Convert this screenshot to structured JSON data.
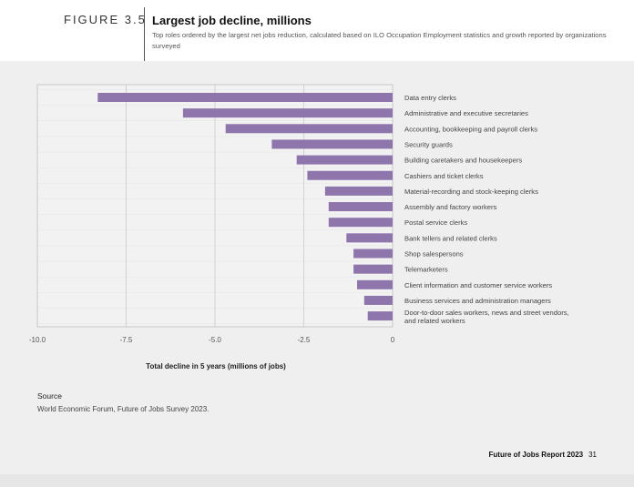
{
  "header": {
    "figure_label": "FIGURE 3.5",
    "title": "Largest job decline, millions",
    "subtitle": "Top roles ordered by the largest net jobs reduction, calculated based on ILO Occupation Employment statistics and growth reported by organizations surveyed"
  },
  "chart_data": {
    "type": "bar",
    "orientation": "horizontal",
    "categories": [
      "Data entry clerks",
      "Administrative and executive secretaries",
      "Accounting, bookkeeping and payroll clerks",
      "Security guards",
      "Building caretakers and housekeepers",
      "Cashiers and ticket clerks",
      "Material-recording and stock-keeping clerks",
      "Assembly and factory workers",
      "Postal service clerks",
      "Bank tellers and related clerks",
      "Shop salespersons",
      "Telemarketers",
      "Client information and customer service workers",
      "Business services and administration managers",
      "Door-to-door sales workers, news and street vendors, and related workers"
    ],
    "values": [
      -8.3,
      -5.9,
      -4.7,
      -3.4,
      -2.7,
      -2.4,
      -1.9,
      -1.8,
      -1.8,
      -1.3,
      -1.1,
      -1.1,
      -1.0,
      -0.8,
      -0.7
    ],
    "xlim": [
      -10.0,
      0
    ],
    "x_ticks": [
      "-10.0",
      "-7.5",
      "-5.0",
      "-2.5",
      "0"
    ],
    "xlabel": "Total decline in 5 years (millions of jobs)",
    "bar_color": "#8e75ac",
    "grid": true
  },
  "source": {
    "label": "Source",
    "text": "World Economic Forum, Future of Jobs Survey 2023."
  },
  "footer": {
    "report": "Future of Jobs Report 2023",
    "page": "31"
  }
}
